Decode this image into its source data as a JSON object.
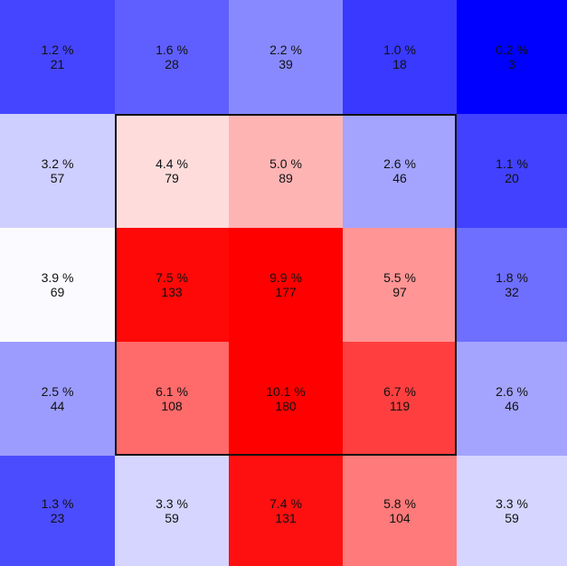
{
  "chart_data": {
    "type": "heatmap",
    "rows": 5,
    "cols": 5,
    "cells": [
      [
        {
          "pct": "1.2 %",
          "count": 21
        },
        {
          "pct": "1.6 %",
          "count": 28
        },
        {
          "pct": "2.2 %",
          "count": 39
        },
        {
          "pct": "1.0 %",
          "count": 18
        },
        {
          "pct": "0.2 %",
          "count": 3
        }
      ],
      [
        {
          "pct": "3.2 %",
          "count": 57
        },
        {
          "pct": "4.4 %",
          "count": 79
        },
        {
          "pct": "5.0 %",
          "count": 89
        },
        {
          "pct": "2.6 %",
          "count": 46
        },
        {
          "pct": "1.1 %",
          "count": 20
        }
      ],
      [
        {
          "pct": "3.9 %",
          "count": 69
        },
        {
          "pct": "7.5 %",
          "count": 133
        },
        {
          "pct": "9.9 %",
          "count": 177
        },
        {
          "pct": "5.5 %",
          "count": 97
        },
        {
          "pct": "1.8 %",
          "count": 32
        }
      ],
      [
        {
          "pct": "2.5 %",
          "count": 44
        },
        {
          "pct": "6.1 %",
          "count": 108
        },
        {
          "pct": "10.1 %",
          "count": 180
        },
        {
          "pct": "6.7 %",
          "count": 119
        },
        {
          "pct": "2.6 %",
          "count": 46
        }
      ],
      [
        {
          "pct": "1.3 %",
          "count": 23
        },
        {
          "pct": "3.3 %",
          "count": 59
        },
        {
          "pct": "7.4 %",
          "count": 131
        },
        {
          "pct": "5.8 %",
          "count": 104
        },
        {
          "pct": "3.3 %",
          "count": 59
        }
      ]
    ],
    "color_scale": {
      "low": "#0000ff",
      "mid": "#ffffff",
      "high": "#ff0000",
      "mid_value": 70
    },
    "highlight_box": {
      "row_start": 1,
      "row_end": 3,
      "col_start": 1,
      "col_end": 3
    }
  }
}
